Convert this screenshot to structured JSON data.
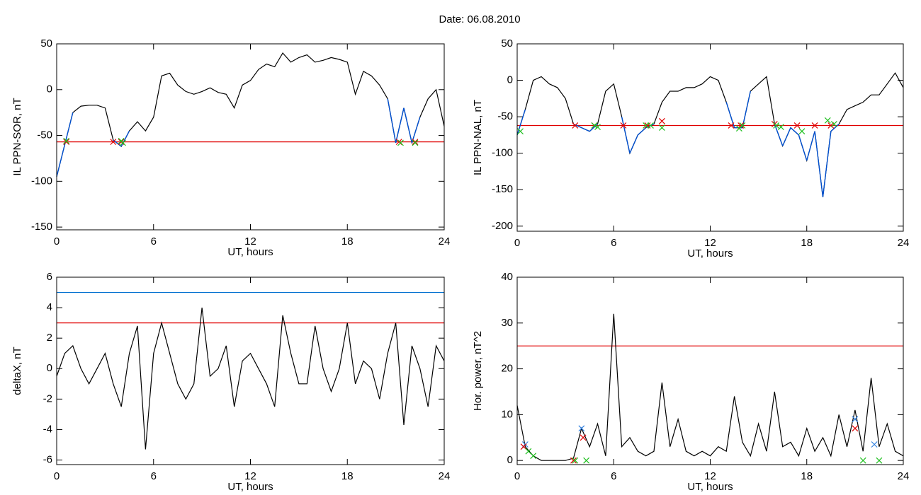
{
  "title": "Date:  06.08.2010",
  "chart_data": [
    {
      "type": "line",
      "xlabel": "UT, hours",
      "ylabel": "IL PPN-SOR, nT",
      "xlim": [
        0,
        24
      ],
      "xticks": [
        0,
        6,
        12,
        18,
        24
      ],
      "ylim": [
        -153,
        50
      ],
      "yticks": [
        -150,
        -100,
        -50,
        0,
        50
      ],
      "hlines": [
        {
          "value": -57,
          "color": "#e00000"
        }
      ],
      "below_color": "#0050d0",
      "series": [
        {
          "color": "#000000",
          "x": [
            0,
            0.5,
            1,
            1.5,
            2,
            2.5,
            3,
            3.5,
            4,
            4.5,
            5,
            5.5,
            6,
            6.5,
            7,
            7.5,
            8,
            8.5,
            9,
            9.5,
            10,
            10.5,
            11,
            11.5,
            12,
            12.5,
            13,
            13.5,
            14,
            14.5,
            15,
            15.5,
            16,
            16.5,
            17,
            17.5,
            18,
            18.5,
            19,
            19.5,
            20,
            20.5,
            21,
            21.5,
            22,
            22.5,
            23,
            23.5,
            24
          ],
          "values": [
            -95,
            -60,
            -25,
            -18,
            -17,
            -17,
            -20,
            -55,
            -62,
            -45,
            -35,
            -45,
            -30,
            15,
            18,
            5,
            -2,
            -5,
            -2,
            2,
            -3,
            -5,
            -20,
            5,
            10,
            22,
            28,
            25,
            40,
            30,
            35,
            38,
            30,
            32,
            35,
            33,
            30,
            -5,
            20,
            15,
            5,
            -10,
            -58,
            -20,
            -58,
            -30,
            -10,
            0,
            -40
          ]
        }
      ],
      "markers": [
        {
          "color": "#e00000",
          "x": [
            0.6,
            3.5,
            4.0,
            21.2,
            22.2
          ],
          "values": [
            -57,
            -57,
            -57,
            -57,
            -57
          ]
        },
        {
          "color": "#20c020",
          "x": [
            0.6,
            4.0,
            4.1,
            21.3,
            22.2
          ],
          "values": [
            -56,
            -56,
            -58,
            -58,
            -58
          ]
        }
      ]
    },
    {
      "type": "line",
      "xlabel": "UT, hours",
      "ylabel": "IL PPN-NAL, nT",
      "xlim": [
        0,
        24
      ],
      "xticks": [
        0,
        6,
        12,
        18,
        24
      ],
      "ylim": [
        -207,
        50
      ],
      "yticks": [
        -200,
        -150,
        -100,
        -50,
        0,
        50
      ],
      "hlines": [
        {
          "value": -62,
          "color": "#e00000"
        }
      ],
      "below_color": "#0050d0",
      "series": [
        {
          "color": "#000000",
          "x": [
            0,
            0.5,
            1,
            1.5,
            2,
            2.5,
            3,
            3.5,
            4,
            4.5,
            5,
            5.5,
            6,
            6.5,
            7,
            7.5,
            8,
            8.5,
            9,
            9.5,
            10,
            10.5,
            11,
            11.5,
            12,
            12.5,
            13,
            13.5,
            14,
            14.5,
            15,
            15.5,
            16,
            16.5,
            17,
            17.5,
            18,
            18.5,
            19,
            19.5,
            20,
            20.5,
            21,
            21.5,
            22,
            22.5,
            23,
            23.5,
            24
          ],
          "values": [
            -75,
            -40,
            0,
            5,
            -5,
            -10,
            -25,
            -60,
            -65,
            -70,
            -60,
            -15,
            -5,
            -50,
            -100,
            -75,
            -65,
            -60,
            -30,
            -15,
            -15,
            -10,
            -10,
            -5,
            5,
            0,
            -30,
            -65,
            -65,
            -15,
            -5,
            5,
            -60,
            -90,
            -65,
            -75,
            -110,
            -70,
            -160,
            -70,
            -60,
            -40,
            -35,
            -30,
            -20,
            -20,
            -5,
            10,
            -10
          ]
        }
      ],
      "markers": [
        {
          "color": "#e00000",
          "x": [
            3.6,
            4.8,
            6.6,
            8.1,
            9.0,
            13.3,
            13.9,
            16.0,
            17.4,
            18.5,
            19.5
          ],
          "values": [
            -62,
            -62,
            -62,
            -62,
            -56,
            -62,
            -62,
            -60,
            -62,
            -62,
            -62
          ]
        },
        {
          "color": "#20c020",
          "x": [
            0.2,
            4.8,
            5.0,
            8.0,
            8.3,
            9.0,
            13.8,
            14.0,
            16.1,
            16.4,
            17.7,
            19.3,
            19.7
          ],
          "values": [
            -70,
            -62,
            -64,
            -62,
            -62,
            -65,
            -66,
            -62,
            -62,
            -64,
            -70,
            -55,
            -60
          ]
        }
      ]
    },
    {
      "type": "line",
      "xlabel": "UT, hours",
      "ylabel": "deltaX, nT",
      "xlim": [
        0,
        24
      ],
      "xticks": [
        0,
        6,
        12,
        18,
        24
      ],
      "ylim": [
        -6.3,
        6
      ],
      "yticks": [
        -6,
        -4,
        -2,
        0,
        2,
        4,
        6
      ],
      "hlines": [
        {
          "value": 3,
          "color": "#e00000"
        },
        {
          "value": 5,
          "color": "#0070d0"
        }
      ],
      "series": [
        {
          "color": "#000000",
          "x": [
            0,
            0.5,
            1,
            1.5,
            2,
            2.5,
            3,
            3.5,
            4,
            4.5,
            5,
            5.5,
            6,
            6.5,
            7,
            7.5,
            8,
            8.5,
            9,
            9.5,
            10,
            10.5,
            11,
            11.5,
            12,
            12.5,
            13,
            13.5,
            14,
            14.5,
            15,
            15.5,
            16,
            16.5,
            17,
            17.5,
            18,
            18.5,
            19,
            19.5,
            20,
            20.5,
            21,
            21.5,
            22,
            22.5,
            23,
            23.5,
            24
          ],
          "values": [
            -0.5,
            1,
            1.5,
            0,
            -1,
            0,
            1,
            -1,
            -2.5,
            1,
            2.8,
            -5.3,
            1,
            3,
            1,
            -1,
            -2,
            -1,
            4,
            -0.5,
            0,
            1.5,
            -2.5,
            0.5,
            1,
            0,
            -1,
            -2.5,
            3.5,
            1,
            -1,
            -1,
            2.8,
            0,
            -1.5,
            0,
            3,
            -1,
            0.5,
            0,
            -2,
            1,
            3,
            -3.7,
            1.5,
            0,
            -2.5,
            1.5,
            0.5
          ]
        }
      ],
      "markers": []
    },
    {
      "type": "line",
      "xlabel": "UT, hours",
      "ylabel": "Hor. power, nT^2",
      "xlim": [
        0,
        24
      ],
      "xticks": [
        0,
        6,
        12,
        18,
        24
      ],
      "ylim": [
        -0.9,
        40
      ],
      "yticks": [
        0,
        10,
        20,
        30,
        40
      ],
      "hlines": [
        {
          "value": 25,
          "color": "#e00000"
        }
      ],
      "series": [
        {
          "color": "#000000",
          "x": [
            0,
            0.5,
            1,
            1.5,
            2,
            2.5,
            3,
            3.5,
            4,
            4.5,
            5,
            5.5,
            6,
            6.5,
            7,
            7.5,
            8,
            8.5,
            9,
            9.5,
            10,
            10.5,
            11,
            11.5,
            12,
            12.5,
            13,
            13.5,
            14,
            14.5,
            15,
            15.5,
            16,
            16.5,
            17,
            17.5,
            18,
            18.5,
            19,
            19.5,
            20,
            20.5,
            21,
            21.5,
            22,
            22.5,
            23,
            23.5,
            24
          ],
          "values": [
            12,
            3,
            1,
            0,
            0,
            0,
            0,
            0.5,
            7,
            3,
            8,
            1,
            32,
            3,
            5,
            2,
            1,
            2,
            17,
            3,
            9,
            2,
            1,
            2,
            1,
            3,
            2,
            14,
            4,
            1,
            8,
            2,
            15,
            3,
            4,
            1,
            7,
            2,
            5,
            1,
            10,
            3,
            11,
            2,
            18,
            3,
            8,
            2,
            1
          ]
        }
      ],
      "markers": [
        {
          "color": "#3080e0",
          "x": [
            0.5,
            4.0,
            21.0,
            22.2
          ],
          "values": [
            3.5,
            7,
            9,
            3.5
          ]
        },
        {
          "color": "#e00000",
          "x": [
            0.4,
            3.5,
            4.1,
            21.0
          ],
          "values": [
            3,
            0,
            5,
            7
          ]
        },
        {
          "color": "#20c020",
          "x": [
            0.7,
            1.0,
            3.6,
            4.3,
            21.5,
            22.5
          ],
          "values": [
            2,
            1,
            0,
            0,
            0,
            0
          ]
        }
      ]
    }
  ]
}
